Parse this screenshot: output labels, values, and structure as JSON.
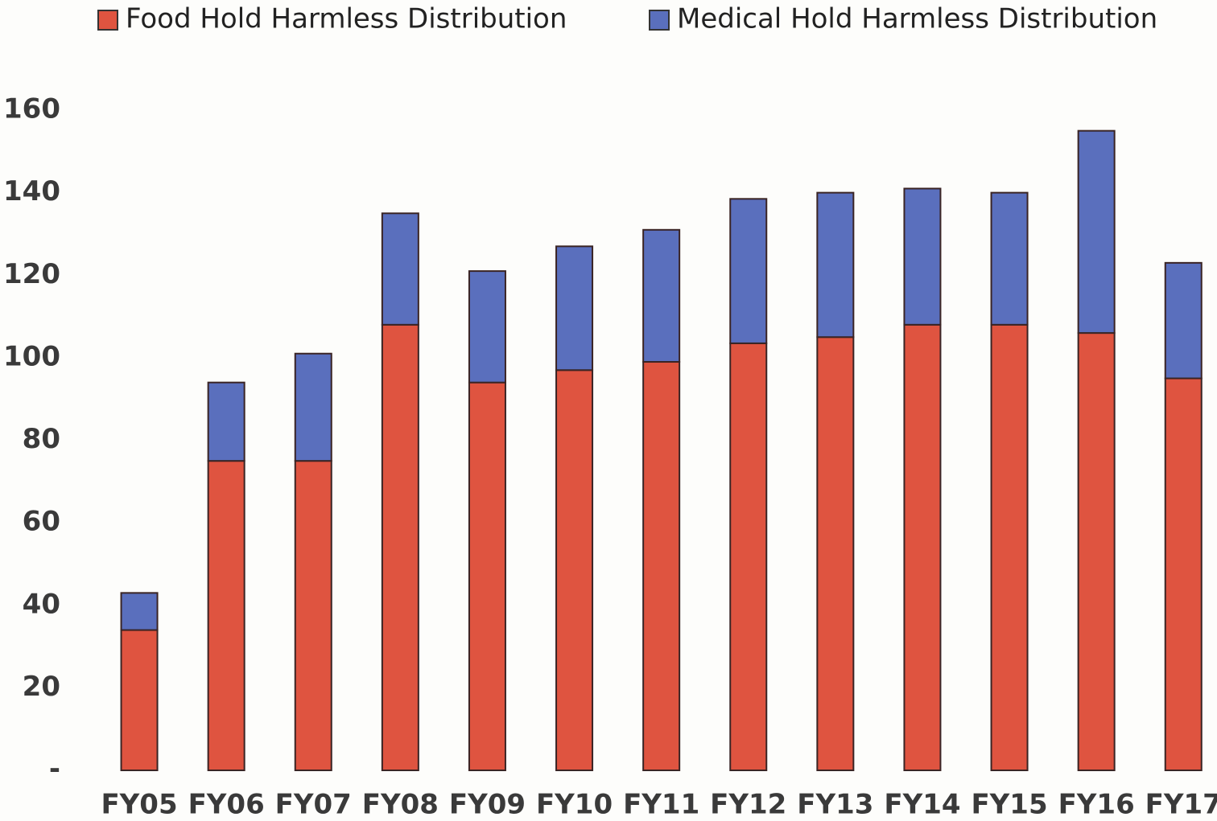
{
  "chart_data": {
    "type": "stacked_bar",
    "categories": [
      "FY05",
      "FY06",
      "FY07",
      "FY08",
      "FY09",
      "FY10",
      "FY11",
      "FY12",
      "FY13",
      "FY14",
      "FY15",
      "FY16",
      "FY17"
    ],
    "series": [
      {
        "name": "Food Hold Harmless Distribution",
        "color": "#df5440",
        "values": [
          34,
          75,
          75,
          108,
          94,
          97,
          99,
          103.5,
          105,
          108,
          108,
          106,
          95
        ]
      },
      {
        "name": "Medical Hold Harmless Distribution",
        "color": "#5a6fbd",
        "values": [
          9,
          19,
          26,
          27,
          27,
          30,
          32,
          35,
          35,
          33,
          32,
          49,
          28
        ]
      }
    ],
    "ylim": [
      0,
      160
    ],
    "yticks": [
      {
        "value": 0,
        "label": "-"
      },
      20,
      40,
      60,
      80,
      100,
      120,
      140,
      160
    ],
    "legend": "top",
    "grid": false
  }
}
